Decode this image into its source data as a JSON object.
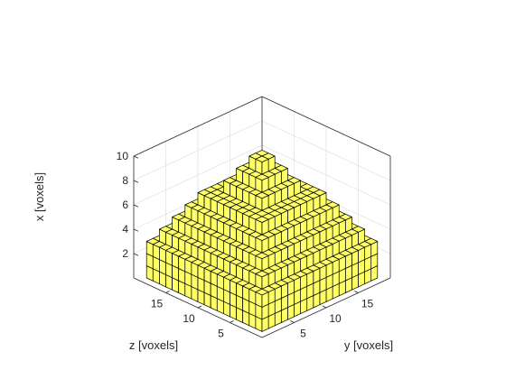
{
  "chart_data": {
    "type": "voxel",
    "title": "",
    "xlabel": "x [voxels]",
    "ylabel": "y [voxels]",
    "zlabel": "z [voxels]",
    "x_ticks": [
      "2",
      "4",
      "6",
      "8",
      "10"
    ],
    "y_ticks": [
      "5",
      "10",
      "15"
    ],
    "z_ticks": [
      "5",
      "10",
      "15"
    ],
    "xlim": [
      0,
      10
    ],
    "ylim": [
      0,
      20
    ],
    "zlim": [
      0,
      20
    ],
    "grid": true,
    "voxel_color": "#ffff66",
    "edge_color": "#000000",
    "voxel_block": {
      "y_range": [
        1,
        19
      ],
      "z_range": [
        1,
        19
      ],
      "description_height_rule": "pyramid"
    }
  }
}
